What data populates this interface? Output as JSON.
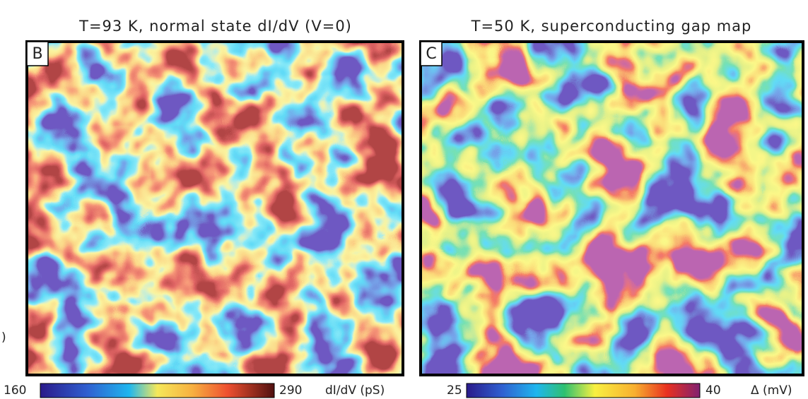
{
  "edge_fragment": ")",
  "panels": [
    {
      "title": "T=93 K, normal state dI/dV (V=0)",
      "label": "B",
      "colorbar": {
        "min": 160,
        "max": 290,
        "unit": "dI/dV (pS)"
      }
    },
    {
      "title": "T=50 K, superconducting gap map",
      "label": "C",
      "colorbar": {
        "min": 25,
        "max": 40,
        "unit": "Δ (mV)"
      }
    }
  ]
}
